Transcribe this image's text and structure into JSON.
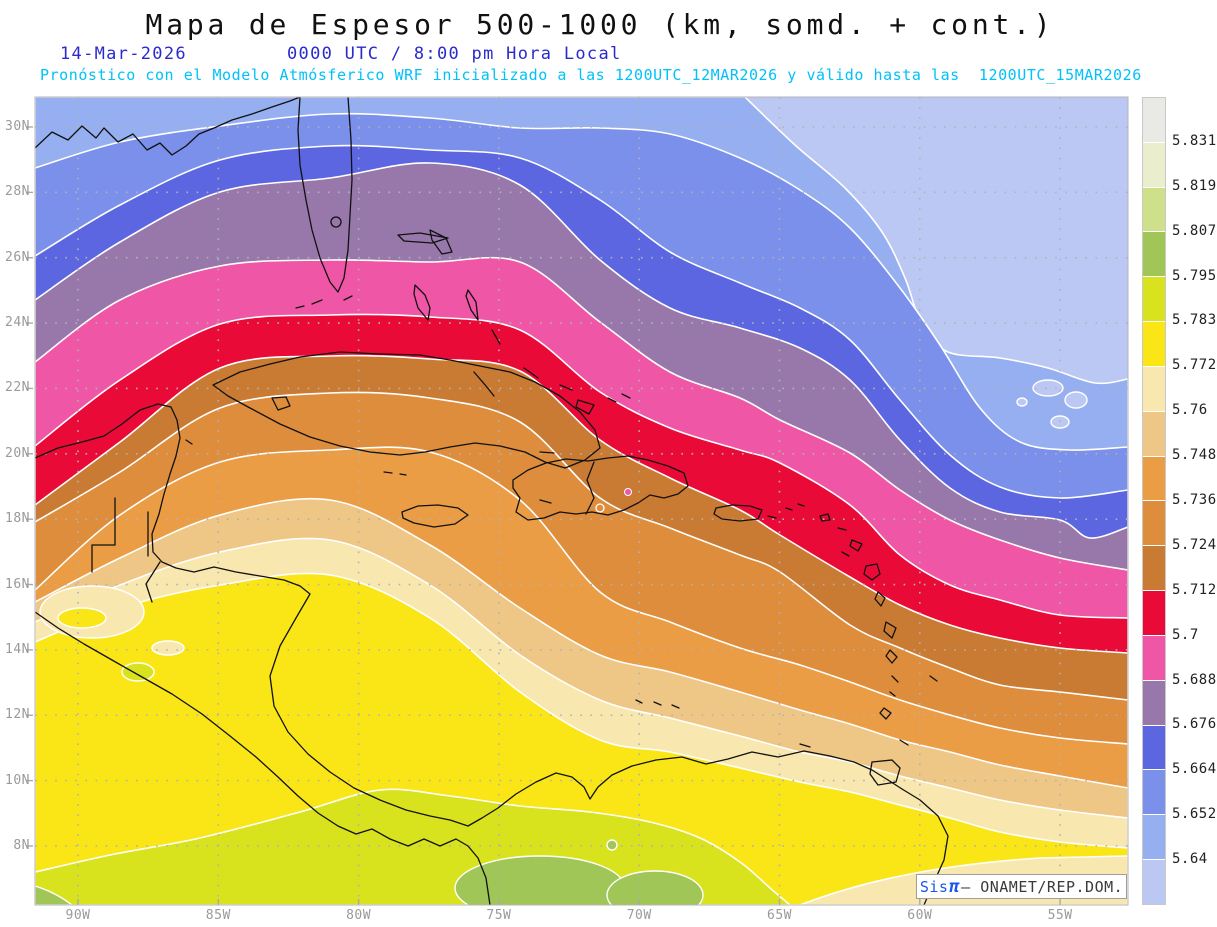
{
  "header": {
    "title": "Mapa de Espesor 500-1000 (km, somd. + cont.)",
    "date": "14-Mar-2026",
    "time": "0000 UTC / 8:00 pm Hora Local",
    "forecast": "Pronóstico con el Modelo Atmósferico WRF inicializado a las 1200UTC_12MAR2026 y válido hasta las  1200UTC_15MAR2026"
  },
  "map": {
    "lat_labels": [
      "30N",
      "28N",
      "26N",
      "24N",
      "22N",
      "20N",
      "18N",
      "16N",
      "14N",
      "12N",
      "10N",
      "8N"
    ],
    "lon_labels": [
      "90W",
      "85W",
      "80W",
      "75W",
      "70W",
      "65W",
      "60W",
      "55W"
    ],
    "grid_color": "#b2b2b2",
    "coast_color": "#111111",
    "contour_line_color": "#ffffff"
  },
  "colorbar": {
    "labels_top_to_bottom": [
      "5.831",
      "5.819",
      "5.807",
      "5.795",
      "5.783",
      "5.772",
      "5.76",
      "5.748",
      "5.736",
      "5.724",
      "5.712",
      "5.7",
      "5.688",
      "5.676",
      "5.664",
      "5.652",
      "5.64"
    ],
    "segments_top_to_bottom": [
      "#e9e9e6",
      "#ebeecd",
      "#cfe08b",
      "#9fc657",
      "#d8e21d",
      "#fae616",
      "#f8e7ae",
      "#eec685",
      "#ea9d45",
      "#dd8d3b",
      "#c97b33",
      "#ea0a38",
      "#ef56a5",
      "#9878ab",
      "#5b66e0",
      "#7a90ea",
      "#96aff0",
      "#bcc8f4"
    ]
  },
  "credit": {
    "sis": "Sis",
    "pi": "π",
    "rest": " – ONAMET/REP.DOM."
  }
}
